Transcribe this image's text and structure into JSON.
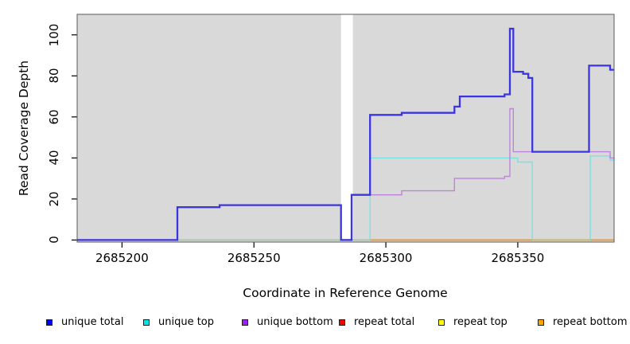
{
  "figure": {
    "xlabel": "Coordinate in Reference Genome",
    "ylabel": "Read Coverage Depth"
  },
  "legend": {
    "items": [
      {
        "label": "unique total",
        "color": "#0000EE"
      },
      {
        "label": "unique top",
        "color": "#00E5E5"
      },
      {
        "label": "unique bottom",
        "color": "#A020F0"
      },
      {
        "label": "repeat total",
        "color": "#EE0000"
      },
      {
        "label": "repeat top",
        "color": "#FFFF00"
      },
      {
        "label": "repeat bottom",
        "color": "#FFA500"
      }
    ]
  },
  "chart_data": {
    "type": "line",
    "subtype": "step-coverage",
    "title": "",
    "xlabel": "Coordinate in Reference Genome",
    "ylabel": "Read Coverage Depth",
    "x_range": [
      2685183,
      2685386.5
    ],
    "y_range": [
      -1,
      110
    ],
    "x_ticks": [
      2685200,
      2685250,
      2685300,
      2685350
    ],
    "y_ticks": [
      0,
      20,
      40,
      60,
      80,
      100
    ],
    "plot_bg": "#D9D9D9",
    "grid": "off",
    "legend_position": "bottom",
    "gap_band": {
      "x_start": 2685283,
      "x_end": 2685287.5,
      "color": "#FFFFFF"
    },
    "series": [
      {
        "name": "repeat bottom",
        "color": "#FF8C00",
        "width": 1.6,
        "segments": [
          {
            "steps": [
              [
                2685294,
                0
              ]
            ],
            "x_end": 2685386.5
          }
        ]
      },
      {
        "name": "unique top at zero (blends green over repeat)",
        "color": "#86CF8A",
        "width": 1.4,
        "segments": [
          {
            "steps": [
              [
                2685221,
                0
              ]
            ],
            "x_end": 2685294
          },
          {
            "steps": [
              [
                2685355.5,
                0
              ]
            ],
            "x_end": 2685377.5
          }
        ]
      },
      {
        "name": "unique top",
        "color": "#79E2E2",
        "width": 1.4,
        "segments": [
          {
            "steps": [
              [
                2685294,
                0
              ],
              [
                2685294,
                40
              ],
              [
                2685350,
                38
              ]
            ],
            "x_end": 2685355.5,
            "y_end": 0
          },
          {
            "steps": [
              [
                2685377.5,
                0
              ],
              [
                2685377.5,
                41
              ],
              [
                2685385,
                39
              ]
            ],
            "x_end": 2685386.5
          }
        ]
      },
      {
        "name": "unique bottom",
        "color": "#BD84DD",
        "width": 1.4,
        "segments": [
          {
            "steps": [
              [
                2685287,
                22
              ],
              [
                2685306,
                24
              ],
              [
                2685326,
                30
              ],
              [
                2685345,
                31
              ],
              [
                2685347,
                64
              ],
              [
                2685348.3,
                43
              ],
              [
                2685385,
                40
              ]
            ],
            "x_end": 2685386.5
          }
        ]
      },
      {
        "name": "unique total",
        "color": "#3B35E0",
        "width": 2.3,
        "segments": [
          {
            "steps": [
              [
                2685183,
                0
              ],
              [
                2685221,
                16
              ],
              [
                2685237,
                17
              ],
              [
                2685283,
                0
              ],
              [
                2685287,
                22
              ],
              [
                2685294,
                61
              ],
              [
                2685306,
                62
              ],
              [
                2685326,
                65
              ],
              [
                2685328,
                70
              ],
              [
                2685345,
                71
              ],
              [
                2685347,
                103
              ],
              [
                2685348.3,
                82
              ],
              [
                2685352,
                81
              ],
              [
                2685354,
                79
              ],
              [
                2685355.5,
                43
              ],
              [
                2685377,
                85
              ],
              [
                2685385,
                83
              ]
            ],
            "x_end": 2685386.5
          }
        ]
      }
    ]
  }
}
